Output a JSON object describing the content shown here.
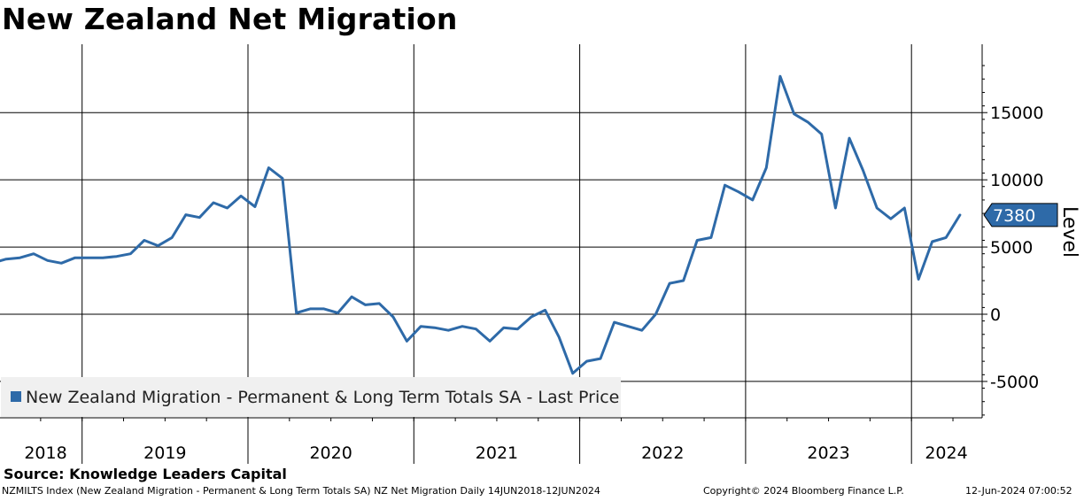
{
  "title": "New Zealand Net Migration",
  "source": "Source: Knowledge Leaders Capital",
  "footer": {
    "left": "NZMILTS Index (New Zealand Migration - Permanent & Long Term Totals SA) NZ Net Migration  Daily 14JUN2018-12JUN2024",
    "middle": "Copyright© 2024 Bloomberg Finance L.P.",
    "right": "12-Jun-2024 07:00:52"
  },
  "colors": {
    "series": "#2e6aa8",
    "label_bg": "#2e6aa8",
    "legend_bg": "#f0f0f0"
  },
  "chart_data": {
    "type": "line",
    "title": "New Zealand Net Migration",
    "ylabel": "Level",
    "xlabel": "",
    "ylim": [
      -7700,
      20000
    ],
    "y_ticks": [
      -5000,
      0,
      5000,
      10000,
      15000
    ],
    "y_tick_labels": [
      "-5000",
      "0",
      "5000",
      "10000",
      "15000"
    ],
    "x_year_labels": [
      "2018",
      "2019",
      "2020",
      "2021",
      "2022",
      "2023",
      "2024"
    ],
    "x_year_label_positions": [
      2018.78,
      2019.5,
      2020.5,
      2021.5,
      2022.5,
      2023.5,
      2024.21
    ],
    "x_year_boundaries": [
      2019,
      2020,
      2021,
      2022,
      2023,
      2024
    ],
    "xlim": [
      2018.45,
      2024.5
    ],
    "grid": true,
    "legend": {
      "position": "bottom-left",
      "entries": [
        "New Zealand Migration - Permanent & Long Term Totals SA - Last Price"
      ]
    },
    "last_value_label": "7380",
    "series": [
      {
        "name": "New Zealand Migration - Permanent & Long Term Totals SA - Last Price",
        "x": [
          2018.458,
          2018.542,
          2018.625,
          2018.708,
          2018.792,
          2018.875,
          2018.958,
          2019.042,
          2019.125,
          2019.208,
          2019.292,
          2019.375,
          2019.458,
          2019.542,
          2019.625,
          2019.708,
          2019.792,
          2019.875,
          2019.958,
          2020.042,
          2020.125,
          2020.208,
          2020.292,
          2020.375,
          2020.458,
          2020.542,
          2020.625,
          2020.708,
          2020.792,
          2020.875,
          2020.958,
          2021.042,
          2021.125,
          2021.208,
          2021.292,
          2021.375,
          2021.458,
          2021.542,
          2021.625,
          2021.708,
          2021.792,
          2021.875,
          2021.958,
          2022.042,
          2022.125,
          2022.208,
          2022.292,
          2022.375,
          2022.458,
          2022.542,
          2022.625,
          2022.708,
          2022.792,
          2022.875,
          2022.958,
          2023.042,
          2023.125,
          2023.208,
          2023.292,
          2023.375,
          2023.458,
          2023.542,
          2023.625,
          2023.708,
          2023.792,
          2023.875,
          2023.958,
          2024.042,
          2024.125,
          2024.208,
          2024.292
        ],
        "values": [
          3800,
          4100,
          4200,
          4500,
          4000,
          3800,
          4200,
          4200,
          4200,
          4300,
          4500,
          5500,
          5100,
          5700,
          7400,
          7200,
          8300,
          7900,
          8800,
          8000,
          10900,
          10100,
          100,
          400,
          400,
          100,
          1300,
          700,
          800,
          -200,
          -2000,
          -900,
          -1000,
          -1200,
          -900,
          -1100,
          -2000,
          -1000,
          -1100,
          -200,
          300,
          -1700,
          -4400,
          -3500,
          -3300,
          -600,
          -900,
          -1200,
          0,
          2300,
          2500,
          5500,
          5700,
          9600,
          9100,
          8500,
          10900,
          17700,
          14900,
          14300,
          13400,
          7900,
          13100,
          10700,
          7900,
          7100,
          7900,
          2600,
          5400,
          5700,
          7380
        ]
      }
    ]
  }
}
